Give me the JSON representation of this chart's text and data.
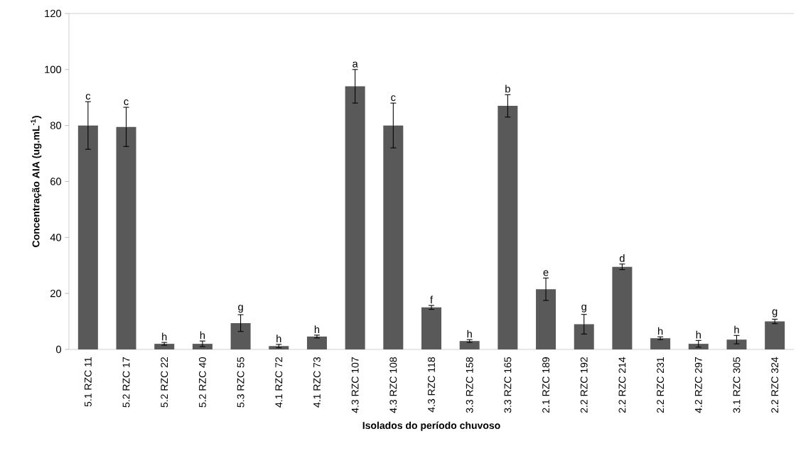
{
  "chart_data": {
    "type": "bar",
    "xlabel": "Isolados do período chuvoso",
    "ylabel": "Concentração AIA (ug.mL$^{-1}$)",
    "categories": [
      "5.1 RZC 11",
      "5.2 RZC 17",
      "5.2 RZC 22",
      "5.2 RZC 40",
      "5.3 RZC 55",
      "4.1 RZC 72",
      "4.1 RZC 73",
      "4.3 RZC 107",
      "4.3 RZC 108",
      "4.3 RZC 118",
      "3.3 RZC 158",
      "3.3 RZC 165",
      "2.1 RZC 189",
      "2.2 RZC 192",
      "2.2 RZC 214",
      "2.2 RZC 231",
      "4.2 RZC 297",
      "3.1 RZC 305",
      "2.2 RZC 324"
    ],
    "values": [
      80,
      79.5,
      2,
      2,
      9.4,
      1.2,
      4.6,
      94,
      80,
      15,
      3,
      87,
      21.5,
      9,
      29.5,
      4,
      2,
      3.5,
      10
    ],
    "errors": [
      8.5,
      7,
      0.5,
      1,
      3,
      0.6,
      0.5,
      6,
      8,
      0.7,
      0.5,
      4,
      4,
      3.5,
      1,
      0.5,
      1.2,
      1.5,
      0.8
    ],
    "value_labels": [
      "c",
      "c",
      "h",
      "h",
      "g",
      "h",
      "h",
      "a",
      "c",
      "f",
      "h",
      "b",
      "e",
      "g",
      "d",
      "h",
      "h",
      "h",
      "g"
    ],
    "color": "#595959",
    "ylim": [
      0,
      120
    ],
    "yticks": [
      0,
      20,
      40,
      60,
      80,
      100,
      120
    ],
    "grid": false
  }
}
